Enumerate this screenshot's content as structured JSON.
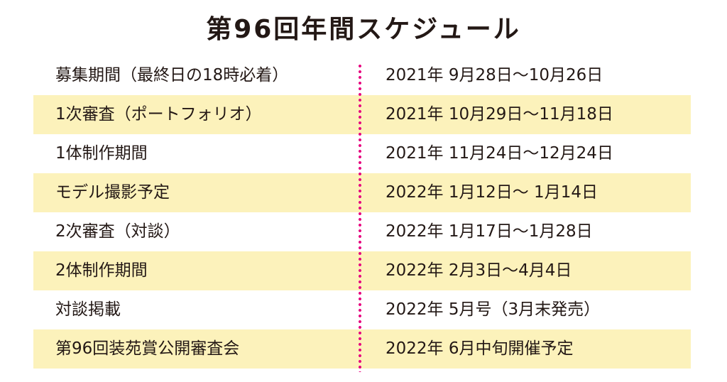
{
  "title": "第96回年間スケジュール",
  "divider_color": "#e6007e",
  "stripe_color": "#fcf2bb",
  "schedule": [
    {
      "label": "募集期間（最終日の18時必着）",
      "date": "2021年 9月28日〜10月26日"
    },
    {
      "label": "1次審査（ポートフォリオ）",
      "date": "2021年 10月29日〜11月18日"
    },
    {
      "label": "1体制作期間",
      "date": "2021年 11月24日〜12月24日"
    },
    {
      "label": "モデル撮影予定",
      "date": "2022年 1月12日〜 1月14日"
    },
    {
      "label": "2次審査（対談）",
      "date": "2022年 1月17日〜1月28日"
    },
    {
      "label": "2体制作期間",
      "date": "2022年 2月3日〜4月4日"
    },
    {
      "label": "対談掲載",
      "date": "2022年 5月号（3月末発売）"
    },
    {
      "label": "第96回装苑賞公開審査会",
      "date": "2022年 6月中旬開催予定"
    }
  ]
}
